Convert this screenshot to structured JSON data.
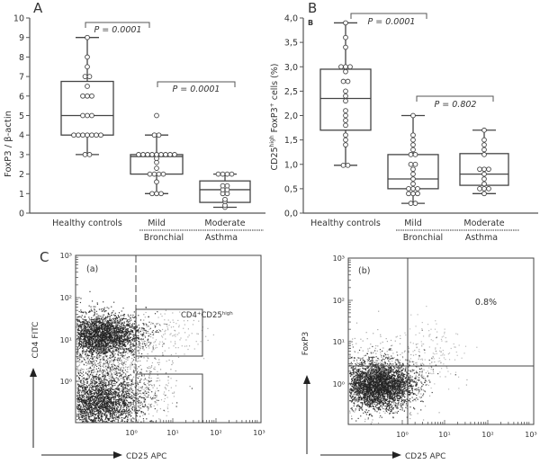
{
  "figure": {
    "panel_A": {
      "letter": "A",
      "ylabel": "FoxP3 / β-actin",
      "yticks": [
        "0",
        "1",
        "2",
        "3",
        "4",
        "5",
        "6",
        "7",
        "8",
        "9",
        "10"
      ],
      "categories": [
        "Healthy controls",
        "Mild",
        "Moderate"
      ],
      "group_label_left": "Bronchial",
      "group_label_right": "Asthma",
      "p1": "P = 0.0001",
      "p2": "P = 0.0001"
    },
    "panel_B": {
      "letter": "B",
      "inner_letter": "B",
      "ylabel": "CD25high FoxP3+ cells (%)",
      "ylabel_main": "CD25",
      "ylabel_sup1": "high",
      "ylabel_mid": " FoxP3",
      "ylabel_sup2": "+",
      "ylabel_end": " cells (%)",
      "yticks": [
        "0,0",
        "0,5",
        "1,0",
        "1,5",
        "2,0",
        "2,5",
        "3,0",
        "3,5",
        "4,0"
      ],
      "categories": [
        "Healthy controls",
        "Mild",
        "Moderate"
      ],
      "group_label_left": "Bronchial",
      "group_label_right": "Asthma",
      "p1": "P = 0.0001",
      "p2": "P = 0.802"
    },
    "panel_C": {
      "letter": "C",
      "a": {
        "tag": "(a)",
        "ylabel": "CD4 FITC",
        "xlabel": "CD25 APC",
        "gate_label": "CD4",
        "gate_sup1": "+",
        "gate_mid": "CD25",
        "gate_sup2": "high",
        "yticks": [
          "10⁰",
          "10¹",
          "10²",
          "10³"
        ],
        "xticks": [
          "10⁰",
          "10¹",
          "10²",
          "10³"
        ]
      },
      "b": {
        "tag": "(b)",
        "ylabel": "FoxP3",
        "xlabel": "CD25 APC",
        "quadrant_pct": "0.8%",
        "yticks": [
          "10⁰",
          "10¹",
          "10²",
          "10³"
        ],
        "xticks": [
          "10⁰",
          "10¹",
          "10²",
          "10³"
        ]
      }
    }
  },
  "chart_data": [
    {
      "type": "box",
      "title": "A",
      "xlabel": "",
      "ylabel": "FoxP3 / β-actin",
      "ylim": [
        0,
        10
      ],
      "categories": [
        "Healthy controls",
        "Mild (Bronchial Asthma)",
        "Moderate (Bronchial Asthma)"
      ],
      "boxes": [
        {
          "name": "Healthy controls",
          "min": 3,
          "q1": 4,
          "median": 5,
          "q3": 6.75,
          "max": 9,
          "points": [
            3,
            3,
            4,
            4,
            4,
            4,
            4,
            4,
            4,
            5,
            5,
            5,
            6,
            6,
            6,
            6.5,
            7,
            7,
            7.5,
            8,
            9
          ]
        },
        {
          "name": "Mild",
          "min": 1,
          "q1": 2,
          "median": 2.9,
          "q3": 3,
          "max": 4,
          "points": [
            1,
            1,
            1,
            1.6,
            2,
            2,
            2,
            2,
            2.3,
            2.6,
            2.8,
            3,
            3,
            3,
            3,
            3,
            3,
            3,
            3,
            3,
            4,
            4,
            5
          ]
        },
        {
          "name": "Moderate",
          "min": 0.3,
          "q1": 0.55,
          "median": 1.2,
          "q3": 1.65,
          "max": 2,
          "points": [
            0.3,
            0.4,
            0.6,
            0.7,
            1,
            1,
            1.2,
            1.2,
            1.4,
            1.4,
            2,
            2,
            2,
            2
          ]
        }
      ],
      "annotations": [
        {
          "between": [
            "Healthy controls",
            "Mild"
          ],
          "text": "P = 0.0001"
        },
        {
          "between": [
            "Mild",
            "Moderate"
          ],
          "text": "P = 0.0001"
        }
      ]
    },
    {
      "type": "box",
      "title": "B",
      "xlabel": "",
      "ylabel": "CD25high FoxP3+ cells (%)",
      "ylim": [
        0,
        4
      ],
      "categories": [
        "Healthy controls",
        "Mild (Bronchial Asthma)",
        "Moderate (Bronchial Asthma)"
      ],
      "boxes": [
        {
          "name": "Healthy controls",
          "min": 0.98,
          "q1": 1.7,
          "median": 2.35,
          "q3": 2.95,
          "max": 3.9,
          "points": [
            0.98,
            0.98,
            1.4,
            1.5,
            1.6,
            1.8,
            1.9,
            2.0,
            2.1,
            2.3,
            2.4,
            2.5,
            2.7,
            2.7,
            2.9,
            3.0,
            3.0,
            3.0,
            3.4,
            3.6,
            3.9
          ]
        },
        {
          "name": "Mild",
          "min": 0.2,
          "q1": 0.5,
          "median": 0.7,
          "q3": 1.2,
          "max": 2.0,
          "points": [
            0.2,
            0.2,
            0.4,
            0.4,
            0.4,
            0.5,
            0.5,
            0.5,
            0.6,
            0.7,
            0.8,
            0.9,
            1.0,
            1.0,
            1.2,
            1.2,
            1.3,
            1.4,
            1.5,
            1.6,
            2.0
          ]
        },
        {
          "name": "Moderate",
          "min": 0.4,
          "q1": 0.57,
          "median": 0.8,
          "q3": 1.22,
          "max": 1.7,
          "points": [
            0.4,
            0.5,
            0.5,
            0.5,
            0.6,
            0.7,
            0.8,
            0.9,
            0.9,
            0.9,
            1.2,
            1.3,
            1.4,
            1.5,
            1.7
          ]
        }
      ],
      "annotations": [
        {
          "between": [
            "Healthy controls",
            "Mild"
          ],
          "text": "P = 0.0001"
        },
        {
          "between": [
            "Mild",
            "Moderate"
          ],
          "text": "P = 0.802"
        }
      ]
    },
    {
      "type": "scatter",
      "title": "C (a)",
      "xlabel": "CD25 APC",
      "ylabel": "CD4 FITC",
      "xscale": "log",
      "yscale": "log",
      "xticks": [
        "10⁰",
        "10¹",
        "10²",
        "10³"
      ],
      "yticks": [
        "10⁰",
        "10¹",
        "10²",
        "10³"
      ],
      "gates": [
        {
          "label": "CD4+CD25high"
        }
      ],
      "description": "Flow cytometry density plot; dense CD4+ population near 10¹ and CD4- population near 10⁻¹ on left of CD25 threshold"
    },
    {
      "type": "scatter",
      "title": "C (b)",
      "xlabel": "CD25 APC",
      "ylabel": "FoxP3",
      "xscale": "log",
      "yscale": "log",
      "xticks": [
        "10⁰",
        "10¹",
        "10²",
        "10³"
      ],
      "yticks": [
        "10⁰",
        "10¹",
        "10²",
        "10³"
      ],
      "annotations": [
        {
          "quadrant": "upper-right",
          "text": "0.8%"
        }
      ]
    }
  ]
}
